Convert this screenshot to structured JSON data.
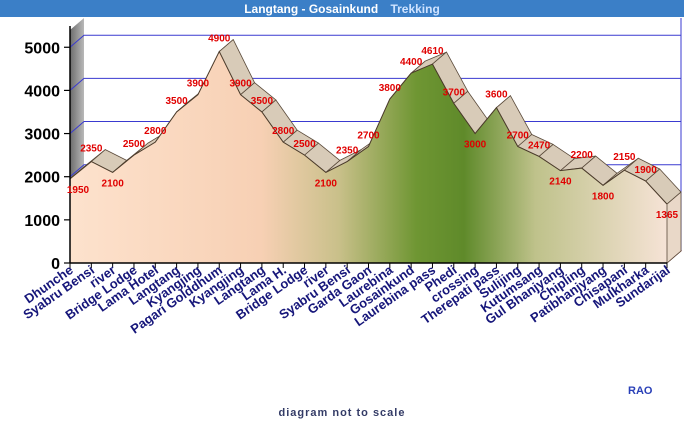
{
  "chart_data": {
    "type": "area",
    "title": "Langtang - Gosainkund",
    "title_accent": "Trekking",
    "note": "diagram not to scale",
    "credit": "RAO",
    "yticks": [
      0,
      1000,
      2000,
      3000,
      4000,
      5000
    ],
    "ylim": [
      0,
      5400
    ],
    "grid": true,
    "categories": [
      "Dhunche",
      "Syabru Bensi",
      "river",
      "Bridge Lodge",
      "Lama Hotel",
      "Langtang",
      "Kyangjing",
      "Pagari Golddhum",
      "Kyangjing",
      "Langtang",
      "Lama H.",
      "Bridge Lodge",
      "river",
      "Syabru Bensi",
      "Garda Gaon",
      "Laurebina",
      "Gosainkund",
      "Laurebina pass",
      "Phedi",
      "crossing",
      "Therepati pass",
      "Sulijing",
      "Kutumsang",
      "Gul Bhanjyang",
      "Chipling",
      "Patibhanjyang",
      "Chisapani",
      "Mulkharka",
      "Sundarijal"
    ],
    "values": [
      1950,
      2350,
      2100,
      2500,
      2800,
      3500,
      3900,
      4900,
      3900,
      3500,
      2800,
      2500,
      2100,
      2350,
      2700,
      3800,
      4400,
      4610,
      3700,
      3000,
      3600,
      2700,
      2470,
      2140,
      2200,
      1800,
      2150,
      1900,
      1365
    ],
    "value_labels": [
      "1950",
      "2350",
      "2100",
      "2500",
      "2800",
      "3500",
      "3900",
      "4900",
      "3900",
      "3500",
      "2800",
      "2500",
      "2100",
      "2350",
      "2700",
      "3800",
      "4400",
      "4610",
      "3700",
      "3000",
      "3600",
      "2700",
      "2470",
      "2140",
      "2200",
      "1800",
      "2150",
      "1900",
      "1365"
    ],
    "colors": {
      "title_bar": "#3b7fc7",
      "axis_labels": "#16167a",
      "value_labels": "#e00000",
      "grid": "#3a3ad0",
      "area_left": "#f8d7bd",
      "area_right": "#5f8a2a",
      "ridge": "#d8cbb8",
      "floor": "#c0392b"
    }
  }
}
